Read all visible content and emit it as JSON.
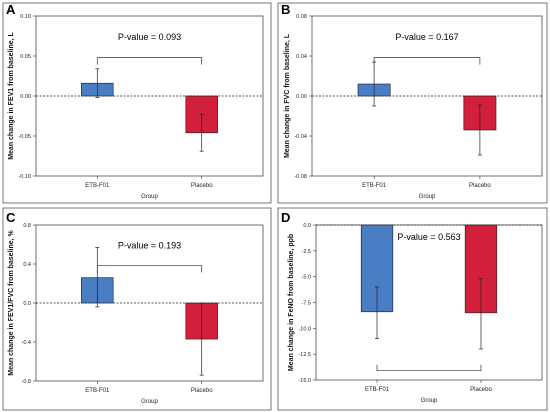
{
  "x_axis_title": "Group",
  "colors": {
    "etb": "#4a7ec4",
    "placebo": "#d21f3c",
    "frame": "#555555"
  },
  "chart_data": [
    {
      "panel": "A",
      "type": "bar",
      "categories": [
        "ETB-F01",
        "Placebo"
      ],
      "values": [
        0.016,
        -0.046
      ],
      "error_lower": [
        -0.002,
        -0.069
      ],
      "error_upper": [
        0.034,
        -0.023
      ],
      "ylabel": "Mean change in FEV1 from baseline, L",
      "xlabel": "Group",
      "ylim": [
        -0.1,
        0.1
      ],
      "yticks": [
        0.1,
        0.05,
        0.0,
        -0.05,
        -0.1
      ],
      "ytick_labels": [
        "0.10",
        "0.05",
        "0.00",
        "-0.05",
        "-0.10"
      ],
      "annotation": "P-value = 0.093",
      "bracket_position": "above"
    },
    {
      "panel": "B",
      "type": "bar",
      "categories": [
        "ETB-F01",
        "Placebo"
      ],
      "values": [
        0.012,
        -0.034
      ],
      "error_lower": [
        -0.01,
        -0.059
      ],
      "error_upper": [
        0.034,
        -0.009
      ],
      "ylabel": "Mean change in FVC from baseline, L",
      "xlabel": "Group",
      "ylim": [
        -0.08,
        0.08
      ],
      "yticks": [
        0.08,
        0.04,
        0.0,
        -0.04,
        -0.08
      ],
      "ytick_labels": [
        "0.08",
        "0.04",
        "0.00",
        "-0.04",
        "-0.08"
      ],
      "annotation": "P-value = 0.167",
      "bracket_position": "above"
    },
    {
      "panel": "C",
      "type": "bar",
      "categories": [
        "ETB-F01",
        "Placebo"
      ],
      "values": [
        0.26,
        -0.37
      ],
      "error_lower": [
        -0.04,
        -0.74
      ],
      "error_upper": [
        0.57,
        0.0
      ],
      "ylabel": "Mean change in FEV1/FVC from baseline, %",
      "xlabel": "Group",
      "ylim": [
        -0.8,
        0.8
      ],
      "yticks": [
        0.8,
        0.4,
        0.0,
        -0.4,
        -0.8
      ],
      "ytick_labels": [
        "0.8",
        "0.4",
        "0.0",
        "-0.4",
        "-0.8"
      ],
      "annotation": "P-value = 0.193",
      "bracket_position": "above"
    },
    {
      "panel": "D",
      "type": "bar",
      "categories": [
        "ETB-F01",
        "Placebo"
      ],
      "values": [
        -8.4,
        -8.5
      ],
      "error_lower": [
        -11.0,
        -12.0
      ],
      "error_upper": [
        -6.0,
        -5.2
      ],
      "ylabel": "Mean change in FeNO from baseline, ppb",
      "xlabel": "Group",
      "ylim": [
        -15.0,
        0.0
      ],
      "yticks": [
        0.0,
        -2.5,
        -5.0,
        -7.5,
        -10.0,
        -12.5,
        -15.0
      ],
      "ytick_labels": [
        "0.0",
        "-2.5",
        "-5.0",
        "-7.5",
        "-10.0",
        "-12.5",
        "-15.0"
      ],
      "annotation": "P-value = 0.563",
      "bracket_position": "below"
    }
  ]
}
